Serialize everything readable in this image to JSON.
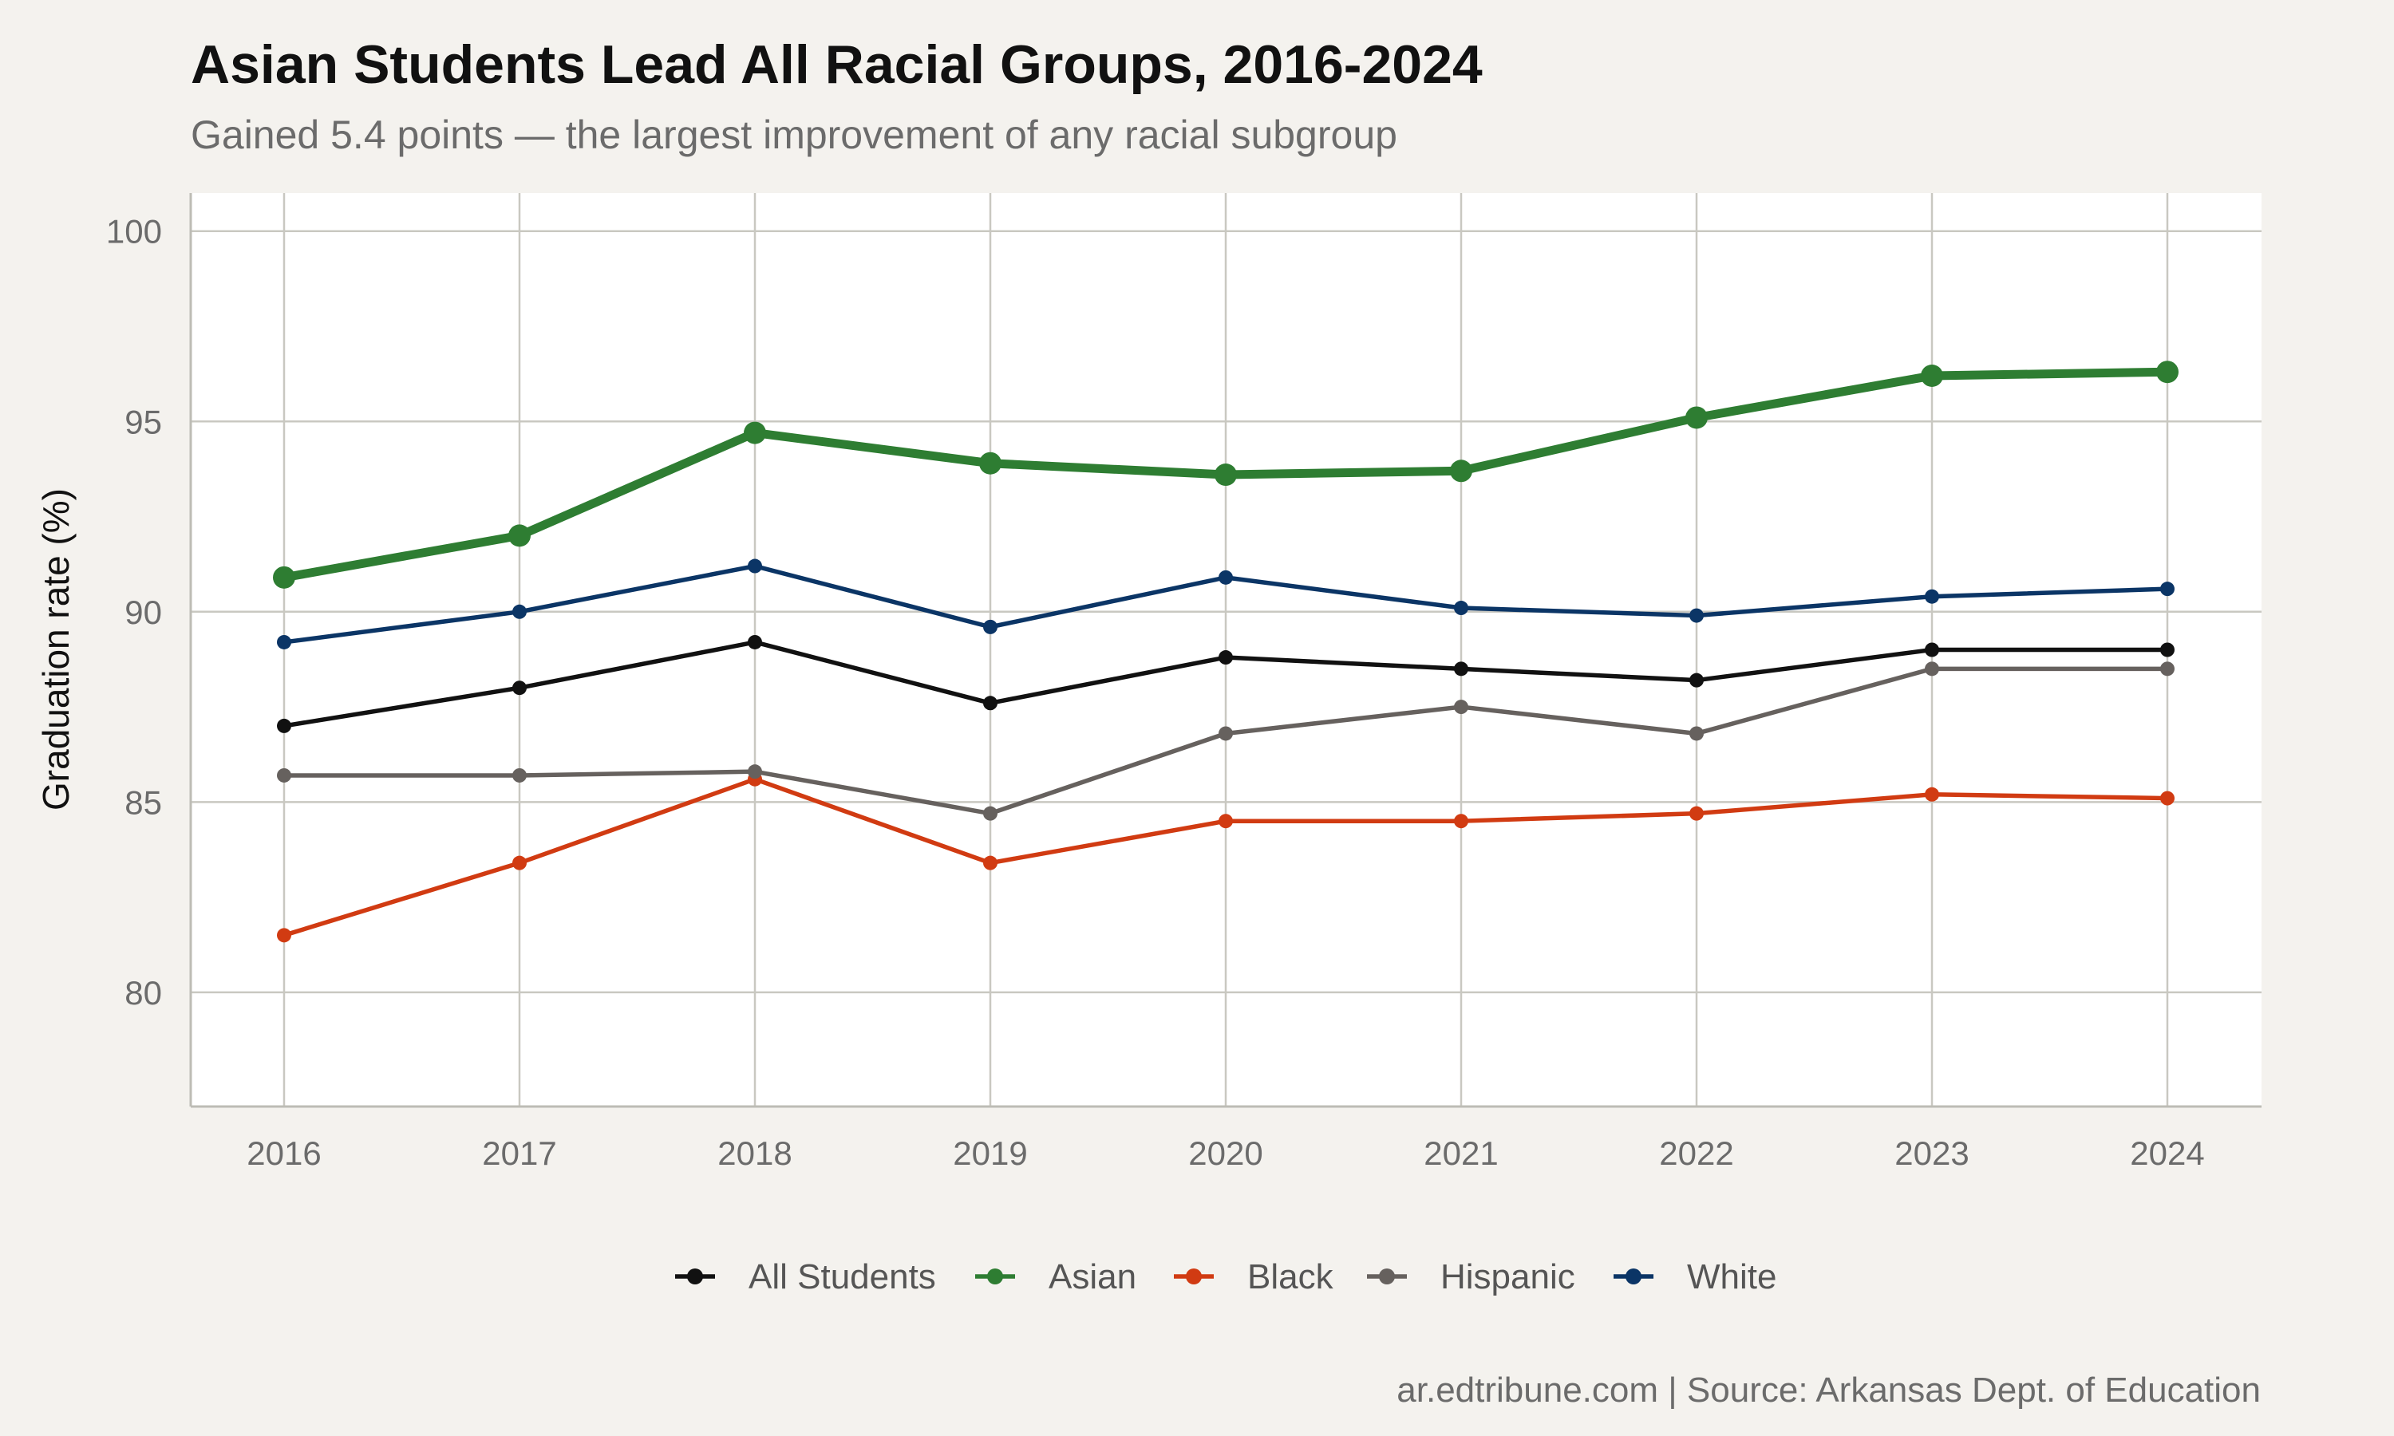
{
  "chart_data": {
    "type": "line",
    "title": "Asian Students Lead All Racial Groups, 2016-2024",
    "subtitle": "Gained 5.4 points — the largest improvement of any racial subgroup",
    "caption": "ar.edtribune.com | Source: Arkansas Dept. of Education",
    "xlabel": "",
    "ylabel": "Graduation rate (%)",
    "x": [
      "2016",
      "2017",
      "2018",
      "2019",
      "2020",
      "2021",
      "2022",
      "2023",
      "2024"
    ],
    "ylim": [
      77,
      101
    ],
    "yticks": [
      80,
      85,
      90,
      95,
      100
    ],
    "grid": true,
    "legend_position": "bottom",
    "series": [
      {
        "name": "All Students",
        "color": "#111111",
        "emphasis": false,
        "values": [
          87.0,
          88.0,
          89.2,
          87.6,
          88.8,
          88.5,
          88.2,
          89.0,
          89.0
        ]
      },
      {
        "name": "Asian",
        "color": "#2e7d32",
        "emphasis": true,
        "values": [
          90.9,
          92.0,
          94.7,
          93.9,
          93.6,
          93.7,
          95.1,
          96.2,
          96.3
        ]
      },
      {
        "name": "Black",
        "color": "#d13b12",
        "emphasis": false,
        "values": [
          81.5,
          83.4,
          85.6,
          83.4,
          84.5,
          84.5,
          84.7,
          85.2,
          85.1
        ]
      },
      {
        "name": "Hispanic",
        "color": "#66615e",
        "emphasis": false,
        "values": [
          85.7,
          85.7,
          85.8,
          84.7,
          86.8,
          87.5,
          86.8,
          88.5,
          88.5
        ]
      },
      {
        "name": "White",
        "color": "#0b3566",
        "emphasis": false,
        "values": [
          89.2,
          90.0,
          91.2,
          89.6,
          90.9,
          90.1,
          89.9,
          90.4,
          90.6
        ]
      }
    ]
  }
}
